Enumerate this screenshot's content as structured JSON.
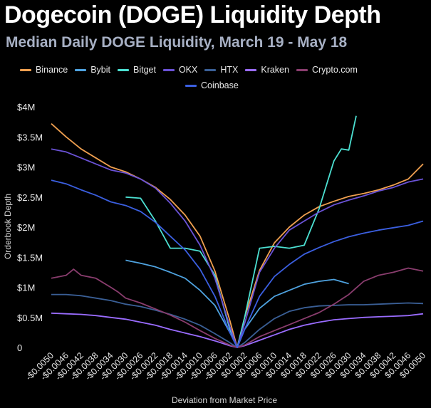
{
  "chart_data": {
    "type": "line",
    "title": "Dogecoin (DOGE) Liquidity Depth",
    "subtitle": "Median Daily DOGE Liquidity, March 19 - May 18",
    "xlabel": "Deviation from Market Price",
    "ylabel": "Orderbook Depth",
    "ylim": [
      0,
      4000000
    ],
    "xlim": [
      -0.005,
      0.005
    ],
    "grid": false,
    "legend_position": "top",
    "y_ticks": [
      {
        "value": 0,
        "label": "0"
      },
      {
        "value": 500000,
        "label": "$0.5M"
      },
      {
        "value": 1000000,
        "label": "$1M"
      },
      {
        "value": 1500000,
        "label": "$1.5M"
      },
      {
        "value": 2000000,
        "label": "$2M"
      },
      {
        "value": 2500000,
        "label": "$2.5M"
      },
      {
        "value": 3000000,
        "label": "$3M"
      },
      {
        "value": 3500000,
        "label": "$3.5M"
      },
      {
        "value": 4000000,
        "label": "$4M"
      }
    ],
    "x_ticks": [
      {
        "value": -0.005,
        "label": "-$0.0050"
      },
      {
        "value": -0.0046,
        "label": "-$0.0046"
      },
      {
        "value": -0.0042,
        "label": "-$0.0042"
      },
      {
        "value": -0.0038,
        "label": "-$0.0038"
      },
      {
        "value": -0.0034,
        "label": "-$0.0034"
      },
      {
        "value": -0.003,
        "label": "-$0.0030"
      },
      {
        "value": -0.0026,
        "label": "-$0.0026"
      },
      {
        "value": -0.0022,
        "label": "-$0.0022"
      },
      {
        "value": -0.0018,
        "label": "-$0.0018"
      },
      {
        "value": -0.0014,
        "label": "-$0.0014"
      },
      {
        "value": -0.001,
        "label": "-$0.0010"
      },
      {
        "value": -0.0006,
        "label": "-$0.0006"
      },
      {
        "value": -0.0002,
        "label": "-$0.0002"
      },
      {
        "value": 0.0002,
        "label": "$0.0002"
      },
      {
        "value": 0.0006,
        "label": "$0.0006"
      },
      {
        "value": 0.001,
        "label": "$0.0010"
      },
      {
        "value": 0.0014,
        "label": "$0.0014"
      },
      {
        "value": 0.0018,
        "label": "$0.0018"
      },
      {
        "value": 0.0022,
        "label": "$0.0022"
      },
      {
        "value": 0.0026,
        "label": "$0.0026"
      },
      {
        "value": 0.003,
        "label": "$0.0030"
      },
      {
        "value": 0.0034,
        "label": "$0.0034"
      },
      {
        "value": 0.0038,
        "label": "$0.0038"
      },
      {
        "value": 0.0042,
        "label": "$0.0042"
      },
      {
        "value": 0.0046,
        "label": "$0.0046"
      },
      {
        "value": 0.005,
        "label": "$0.0050"
      }
    ],
    "series": [
      {
        "name": "Binance",
        "color": "#f0a050",
        "points": [
          [
            -0.005,
            3720000
          ],
          [
            -0.0046,
            3500000
          ],
          [
            -0.0042,
            3300000
          ],
          [
            -0.0038,
            3150000
          ],
          [
            -0.0034,
            3000000
          ],
          [
            -0.003,
            2920000
          ],
          [
            -0.0026,
            2800000
          ],
          [
            -0.0022,
            2660000
          ],
          [
            -0.0018,
            2460000
          ],
          [
            -0.0014,
            2200000
          ],
          [
            -0.001,
            1850000
          ],
          [
            -0.0006,
            1270000
          ],
          [
            -0.0002,
            450000
          ],
          [
            0,
            0
          ],
          [
            0.0002,
            500000
          ],
          [
            0.0006,
            1280000
          ],
          [
            0.001,
            1740000
          ],
          [
            0.0014,
            2000000
          ],
          [
            0.0018,
            2200000
          ],
          [
            0.0022,
            2340000
          ],
          [
            0.0026,
            2430000
          ],
          [
            0.003,
            2510000
          ],
          [
            0.0034,
            2560000
          ],
          [
            0.0038,
            2620000
          ],
          [
            0.0042,
            2700000
          ],
          [
            0.0046,
            2800000
          ],
          [
            0.005,
            3050000
          ]
        ]
      },
      {
        "name": "Bybit",
        "color": "#4fa3e0",
        "points": [
          [
            -0.003,
            1450000
          ],
          [
            -0.0026,
            1400000
          ],
          [
            -0.0022,
            1340000
          ],
          [
            -0.0018,
            1250000
          ],
          [
            -0.0014,
            1150000
          ],
          [
            -0.001,
            950000
          ],
          [
            -0.0006,
            700000
          ],
          [
            -0.0002,
            250000
          ],
          [
            0,
            0
          ],
          [
            0.0002,
            300000
          ],
          [
            0.0006,
            650000
          ],
          [
            0.001,
            850000
          ],
          [
            0.0014,
            950000
          ],
          [
            0.0018,
            1050000
          ],
          [
            0.0022,
            1100000
          ],
          [
            0.0026,
            1130000
          ],
          [
            0.003,
            1060000
          ]
        ]
      },
      {
        "name": "Bitget",
        "color": "#4ce0d2",
        "points": [
          [
            -0.003,
            2500000
          ],
          [
            -0.0026,
            2480000
          ],
          [
            -0.0022,
            2100000
          ],
          [
            -0.0018,
            1650000
          ],
          [
            -0.0014,
            1650000
          ],
          [
            -0.001,
            1600000
          ],
          [
            -0.0006,
            1200000
          ],
          [
            -0.0002,
            300000
          ],
          [
            0,
            0
          ],
          [
            0.0002,
            500000
          ],
          [
            0.0006,
            1650000
          ],
          [
            0.001,
            1680000
          ],
          [
            0.0014,
            1650000
          ],
          [
            0.0018,
            1700000
          ],
          [
            0.0022,
            2300000
          ],
          [
            0.0026,
            3100000
          ],
          [
            0.0028,
            3300000
          ],
          [
            0.003,
            3280000
          ],
          [
            0.0032,
            3850000
          ]
        ]
      },
      {
        "name": "OKX",
        "color": "#6a52d6",
        "points": [
          [
            -0.005,
            3300000
          ],
          [
            -0.0046,
            3250000
          ],
          [
            -0.0042,
            3150000
          ],
          [
            -0.0038,
            3050000
          ],
          [
            -0.0034,
            2950000
          ],
          [
            -0.003,
            2900000
          ],
          [
            -0.0026,
            2800000
          ],
          [
            -0.0022,
            2650000
          ],
          [
            -0.0018,
            2400000
          ],
          [
            -0.0014,
            2100000
          ],
          [
            -0.001,
            1700000
          ],
          [
            -0.0006,
            1150000
          ],
          [
            -0.0002,
            350000
          ],
          [
            0,
            0
          ],
          [
            0.0002,
            400000
          ],
          [
            0.0006,
            1250000
          ],
          [
            0.001,
            1650000
          ],
          [
            0.0014,
            1950000
          ],
          [
            0.0018,
            2100000
          ],
          [
            0.0022,
            2250000
          ],
          [
            0.0026,
            2370000
          ],
          [
            0.003,
            2450000
          ],
          [
            0.0034,
            2520000
          ],
          [
            0.0038,
            2600000
          ],
          [
            0.0042,
            2660000
          ],
          [
            0.0046,
            2750000
          ],
          [
            0.005,
            2800000
          ]
        ]
      },
      {
        "name": "HTX",
        "color": "#3a5f96",
        "points": [
          [
            -0.005,
            880000
          ],
          [
            -0.0046,
            880000
          ],
          [
            -0.0042,
            860000
          ],
          [
            -0.0038,
            820000
          ],
          [
            -0.0034,
            780000
          ],
          [
            -0.003,
            720000
          ],
          [
            -0.0026,
            680000
          ],
          [
            -0.0022,
            620000
          ],
          [
            -0.0018,
            550000
          ],
          [
            -0.0014,
            470000
          ],
          [
            -0.001,
            370000
          ],
          [
            -0.0006,
            230000
          ],
          [
            -0.0002,
            80000
          ],
          [
            0,
            0
          ],
          [
            0.0002,
            80000
          ],
          [
            0.0006,
            300000
          ],
          [
            0.001,
            480000
          ],
          [
            0.0014,
            600000
          ],
          [
            0.0018,
            660000
          ],
          [
            0.0022,
            690000
          ],
          [
            0.0026,
            700000
          ],
          [
            0.003,
            710000
          ],
          [
            0.0034,
            710000
          ],
          [
            0.0038,
            720000
          ],
          [
            0.0042,
            730000
          ],
          [
            0.0046,
            740000
          ],
          [
            0.005,
            730000
          ]
        ]
      },
      {
        "name": "Kraken",
        "color": "#9a6cff",
        "points": [
          [
            -0.005,
            570000
          ],
          [
            -0.0046,
            560000
          ],
          [
            -0.0042,
            550000
          ],
          [
            -0.0038,
            530000
          ],
          [
            -0.0034,
            500000
          ],
          [
            -0.003,
            470000
          ],
          [
            -0.0026,
            420000
          ],
          [
            -0.0022,
            370000
          ],
          [
            -0.0018,
            300000
          ],
          [
            -0.0014,
            240000
          ],
          [
            -0.001,
            180000
          ],
          [
            -0.0006,
            110000
          ],
          [
            -0.0002,
            30000
          ],
          [
            0,
            0
          ],
          [
            0.0002,
            30000
          ],
          [
            0.0006,
            120000
          ],
          [
            0.001,
            210000
          ],
          [
            0.0014,
            300000
          ],
          [
            0.0018,
            370000
          ],
          [
            0.0022,
            420000
          ],
          [
            0.0026,
            460000
          ],
          [
            0.003,
            480000
          ],
          [
            0.0034,
            500000
          ],
          [
            0.0038,
            510000
          ],
          [
            0.0042,
            520000
          ],
          [
            0.0046,
            530000
          ],
          [
            0.005,
            560000
          ]
        ]
      },
      {
        "name": "Crypto.com",
        "color": "#8a3d6e",
        "points": [
          [
            -0.005,
            1150000
          ],
          [
            -0.0046,
            1200000
          ],
          [
            -0.0044,
            1300000
          ],
          [
            -0.0042,
            1200000
          ],
          [
            -0.0038,
            1150000
          ],
          [
            -0.0034,
            1000000
          ],
          [
            -0.0032,
            920000
          ],
          [
            -0.003,
            820000
          ],
          [
            -0.0026,
            740000
          ],
          [
            -0.0022,
            640000
          ],
          [
            -0.0018,
            540000
          ],
          [
            -0.0014,
            420000
          ],
          [
            -0.001,
            280000
          ],
          [
            -0.0006,
            150000
          ],
          [
            -0.0002,
            40000
          ],
          [
            0,
            0
          ],
          [
            0.0002,
            40000
          ],
          [
            0.0006,
            180000
          ],
          [
            0.001,
            280000
          ],
          [
            0.0014,
            380000
          ],
          [
            0.0018,
            480000
          ],
          [
            0.0022,
            580000
          ],
          [
            0.0026,
            720000
          ],
          [
            0.003,
            880000
          ],
          [
            0.0034,
            1100000
          ],
          [
            0.0038,
            1200000
          ],
          [
            0.0042,
            1250000
          ],
          [
            0.0046,
            1320000
          ],
          [
            0.005,
            1270000
          ]
        ]
      },
      {
        "name": "Coinbase",
        "color": "#3b5fe0",
        "points": [
          [
            -0.005,
            2780000
          ],
          [
            -0.0046,
            2720000
          ],
          [
            -0.0042,
            2620000
          ],
          [
            -0.0038,
            2530000
          ],
          [
            -0.0034,
            2420000
          ],
          [
            -0.003,
            2360000
          ],
          [
            -0.0026,
            2260000
          ],
          [
            -0.0022,
            2080000
          ],
          [
            -0.0018,
            1850000
          ],
          [
            -0.0014,
            1620000
          ],
          [
            -0.001,
            1300000
          ],
          [
            -0.0006,
            850000
          ],
          [
            -0.0002,
            250000
          ],
          [
            0,
            0
          ],
          [
            0.0002,
            300000
          ],
          [
            0.0006,
            850000
          ],
          [
            0.001,
            1180000
          ],
          [
            0.0014,
            1380000
          ],
          [
            0.0018,
            1550000
          ],
          [
            0.0022,
            1660000
          ],
          [
            0.0026,
            1760000
          ],
          [
            0.003,
            1840000
          ],
          [
            0.0034,
            1900000
          ],
          [
            0.0038,
            1950000
          ],
          [
            0.0042,
            1990000
          ],
          [
            0.0046,
            2030000
          ],
          [
            0.005,
            2100000
          ]
        ]
      }
    ]
  }
}
